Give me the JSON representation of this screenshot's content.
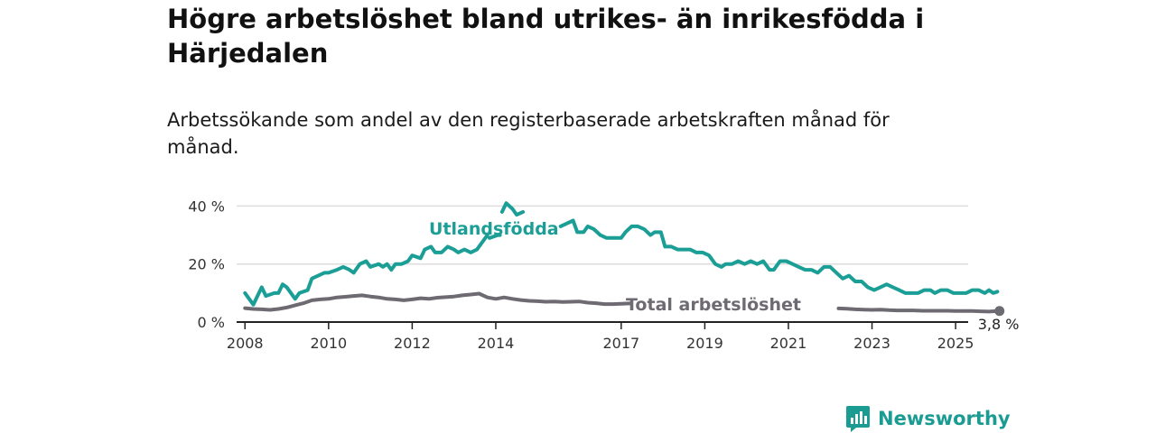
{
  "title": "Högre arbetslöshet bland utrikes- än inrikesfödda i Härjedalen",
  "subtitle": "Arbetssökande som andel av den registerbaserade arbetskraften månad för månad.",
  "brand": {
    "name": "Newsworthy",
    "logo_icon": "bar-chart-speech-bubble-icon"
  },
  "colors": {
    "foreign_born": "#1a9e96",
    "total": "#6e6a72",
    "grid": "#dddddd",
    "axis": "#222222"
  },
  "chart_data": {
    "type": "line",
    "title": "Högre arbetslöshet bland utrikes- än inrikesfödda i Härjedalen",
    "subtitle": "Arbetssökande som andel av den registerbaserade arbetskraften månad för månad.",
    "xlabel": "",
    "ylabel": "",
    "x_range": [
      2007.8,
      2025.3
    ],
    "y_range": [
      0,
      42
    ],
    "grid": true,
    "x_ticks": [
      {
        "value": 2008,
        "label": "2008"
      },
      {
        "value": 2010,
        "label": "2010"
      },
      {
        "value": 2012,
        "label": "2012"
      },
      {
        "value": 2014,
        "label": "2014"
      },
      {
        "value": 2017,
        "label": "2017"
      },
      {
        "value": 2019,
        "label": "2019"
      },
      {
        "value": 2021,
        "label": "2021"
      },
      {
        "value": 2023,
        "label": "2023"
      },
      {
        "value": 2025,
        "label": "2025"
      }
    ],
    "y_ticks": [
      {
        "value": 0,
        "label": "0 %"
      },
      {
        "value": 20,
        "label": "20 %"
      },
      {
        "value": 40,
        "label": "40 %"
      }
    ],
    "series": [
      {
        "name": "Utlandsfödda",
        "color": "#1a9e96",
        "segments": [
          [
            [
              2008.0,
              10
            ],
            [
              2008.2,
              6
            ],
            [
              2008.4,
              12
            ],
            [
              2008.5,
              9
            ],
            [
              2008.7,
              10
            ],
            [
              2008.8,
              10
            ],
            [
              2008.9,
              13
            ],
            [
              2009.0,
              12
            ],
            [
              2009.2,
              8
            ],
            [
              2009.3,
              10
            ],
            [
              2009.5,
              11
            ],
            [
              2009.6,
              15
            ],
            [
              2009.75,
              16
            ],
            [
              2009.9,
              17
            ],
            [
              2010.0,
              17
            ],
            [
              2010.2,
              18
            ],
            [
              2010.35,
              19
            ],
            [
              2010.5,
              18
            ],
            [
              2010.6,
              17
            ],
            [
              2010.75,
              20
            ],
            [
              2010.9,
              21
            ],
            [
              2011.0,
              19
            ],
            [
              2011.2,
              20
            ],
            [
              2011.3,
              19
            ],
            [
              2011.4,
              20
            ],
            [
              2011.5,
              18
            ],
            [
              2011.6,
              20
            ],
            [
              2011.75,
              20
            ],
            [
              2011.9,
              21
            ],
            [
              2012.0,
              23
            ],
            [
              2012.2,
              22
            ],
            [
              2012.3,
              25
            ],
            [
              2012.45,
              26
            ],
            [
              2012.55,
              24
            ],
            [
              2012.7,
              24
            ],
            [
              2012.85,
              26
            ],
            [
              2013.0,
              25
            ],
            [
              2013.1,
              24
            ],
            [
              2013.25,
              25
            ],
            [
              2013.4,
              24
            ],
            [
              2013.55,
              25
            ],
            [
              2013.7,
              28
            ],
            [
              2013.8,
              30
            ]
          ],
          [
            [
              2013.85,
              29
            ],
            [
              2014.05,
              30
            ],
            [
              2014.1,
              30
            ]
          ],
          [
            [
              2014.15,
              38
            ],
            [
              2014.25,
              41
            ],
            [
              2014.4,
              39
            ],
            [
              2014.5,
              37
            ],
            [
              2014.65,
              38
            ]
          ],
          [
            [
              2015.55,
              33
            ],
            [
              2015.7,
              34
            ],
            [
              2015.85,
              35
            ],
            [
              2015.95,
              31
            ],
            [
              2016.1,
              31
            ],
            [
              2016.2,
              33
            ],
            [
              2016.35,
              32
            ],
            [
              2016.5,
              30
            ],
            [
              2016.65,
              29
            ],
            [
              2016.8,
              29
            ],
            [
              2017.0,
              29
            ],
            [
              2017.1,
              31
            ],
            [
              2017.25,
              33
            ],
            [
              2017.4,
              33
            ],
            [
              2017.55,
              32
            ],
            [
              2017.7,
              30
            ],
            [
              2017.8,
              31
            ],
            [
              2017.95,
              31
            ],
            [
              2018.05,
              26
            ],
            [
              2018.2,
              26
            ],
            [
              2018.35,
              25
            ],
            [
              2018.5,
              25
            ],
            [
              2018.65,
              25
            ],
            [
              2018.8,
              24
            ],
            [
              2018.95,
              24
            ],
            [
              2019.1,
              23
            ],
            [
              2019.25,
              20
            ],
            [
              2019.4,
              19
            ],
            [
              2019.5,
              20
            ],
            [
              2019.65,
              20
            ],
            [
              2019.8,
              21
            ],
            [
              2019.95,
              20
            ],
            [
              2020.1,
              21
            ],
            [
              2020.25,
              20
            ],
            [
              2020.4,
              21
            ],
            [
              2020.55,
              18
            ],
            [
              2020.65,
              18
            ],
            [
              2020.8,
              21
            ],
            [
              2020.95,
              21
            ],
            [
              2021.1,
              20
            ],
            [
              2021.25,
              19
            ],
            [
              2021.4,
              18
            ],
            [
              2021.55,
              18
            ],
            [
              2021.7,
              17
            ],
            [
              2021.85,
              19
            ],
            [
              2022.0,
              19
            ],
            [
              2022.15,
              17
            ],
            [
              2022.3,
              15
            ],
            [
              2022.45,
              16
            ],
            [
              2022.6,
              14
            ],
            [
              2022.75,
              14
            ],
            [
              2022.9,
              12
            ],
            [
              2023.05,
              11
            ],
            [
              2023.2,
              12
            ],
            [
              2023.35,
              13
            ],
            [
              2023.5,
              12
            ],
            [
              2023.65,
              11
            ],
            [
              2023.8,
              10
            ],
            [
              2023.95,
              10
            ],
            [
              2024.1,
              10
            ],
            [
              2024.25,
              11
            ],
            [
              2024.4,
              11
            ],
            [
              2024.5,
              10
            ],
            [
              2024.65,
              11
            ],
            [
              2024.8,
              11
            ],
            [
              2024.95,
              10
            ],
            [
              2025.1,
              10
            ],
            [
              2025.25,
              10
            ],
            [
              2025.4,
              11
            ],
            [
              2025.55,
              11
            ],
            [
              2025.7,
              10
            ],
            [
              2025.8,
              11
            ],
            [
              2025.9,
              10
            ],
            [
              2026.0,
              10.5
            ]
          ]
        ]
      },
      {
        "name": "Total arbetslöshet",
        "color": "#6e6a72",
        "end_value_label": "3,8 %",
        "end_point": [
          2026.05,
          3.8
        ],
        "segments": [
          [
            [
              2008.0,
              4.8
            ],
            [
              2008.2,
              4.5
            ],
            [
              2008.4,
              4.4
            ],
            [
              2008.6,
              4.2
            ],
            [
              2008.8,
              4.5
            ],
            [
              2009.0,
              5.0
            ],
            [
              2009.2,
              5.8
            ],
            [
              2009.4,
              6.5
            ],
            [
              2009.6,
              7.5
            ],
            [
              2009.8,
              7.8
            ],
            [
              2010.0,
              8.0
            ],
            [
              2010.2,
              8.5
            ],
            [
              2010.4,
              8.7
            ],
            [
              2010.6,
              9.0
            ],
            [
              2010.8,
              9.2
            ],
            [
              2011.0,
              8.8
            ],
            [
              2011.2,
              8.5
            ],
            [
              2011.4,
              8.0
            ],
            [
              2011.6,
              7.8
            ],
            [
              2011.8,
              7.5
            ],
            [
              2012.0,
              7.8
            ],
            [
              2012.2,
              8.2
            ],
            [
              2012.4,
              8.0
            ],
            [
              2012.6,
              8.4
            ],
            [
              2012.8,
              8.6
            ],
            [
              2013.0,
              8.8
            ],
            [
              2013.2,
              9.2
            ],
            [
              2013.4,
              9.5
            ],
            [
              2013.6,
              9.8
            ],
            [
              2013.8,
              8.5
            ],
            [
              2014.0,
              8.0
            ],
            [
              2014.2,
              8.5
            ],
            [
              2014.4,
              8.0
            ],
            [
              2014.6,
              7.6
            ],
            [
              2014.8,
              7.3
            ],
            [
              2015.0,
              7.2
            ],
            [
              2015.2,
              7.0
            ],
            [
              2015.4,
              7.1
            ],
            [
              2015.6,
              6.9
            ],
            [
              2015.8,
              7.0
            ],
            [
              2016.0,
              7.1
            ],
            [
              2016.2,
              6.7
            ],
            [
              2016.4,
              6.5
            ],
            [
              2016.6,
              6.2
            ],
            [
              2016.8,
              6.2
            ],
            [
              2017.0,
              6.3
            ],
            [
              2017.2,
              6.4
            ]
          ],
          [
            [
              2022.2,
              4.7
            ],
            [
              2022.4,
              4.6
            ],
            [
              2022.6,
              4.4
            ],
            [
              2022.8,
              4.3
            ],
            [
              2023.0,
              4.2
            ],
            [
              2023.2,
              4.3
            ],
            [
              2023.4,
              4.1
            ],
            [
              2023.6,
              4.0
            ],
            [
              2023.8,
              4.0
            ],
            [
              2024.0,
              4.0
            ],
            [
              2024.2,
              3.9
            ],
            [
              2024.4,
              3.9
            ],
            [
              2024.6,
              3.9
            ],
            [
              2024.8,
              3.9
            ],
            [
              2025.0,
              3.8
            ],
            [
              2025.2,
              3.8
            ],
            [
              2025.4,
              3.8
            ],
            [
              2025.6,
              3.7
            ],
            [
              2025.8,
              3.6
            ],
            [
              2026.0,
              3.8
            ]
          ]
        ]
      }
    ]
  }
}
